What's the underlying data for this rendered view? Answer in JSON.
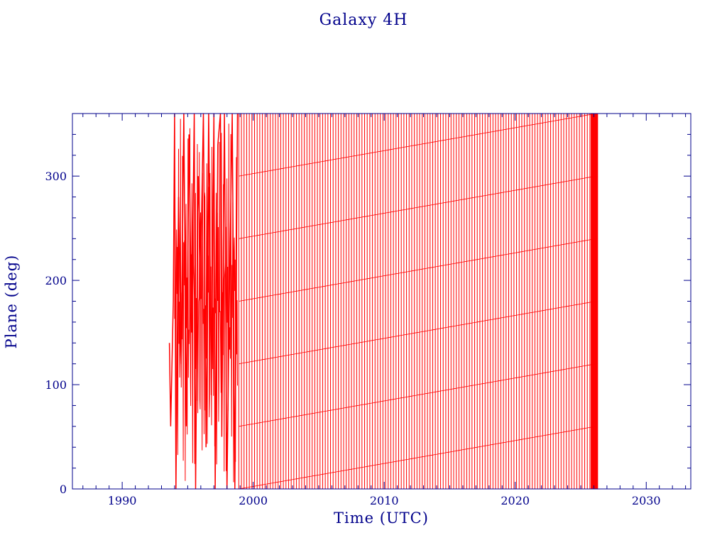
{
  "colors": {
    "axis": "#00008b",
    "text": "#00008b",
    "series": "#ff0000"
  },
  "chart_data": {
    "type": "line",
    "title": "Galaxy 4H",
    "xlabel": "Time (UTC)",
    "ylabel": "Plane (deg)",
    "xlim": [
      1986.2,
      2033.4
    ],
    "ylim": [
      0,
      360
    ],
    "x_ticks": [
      1990,
      2000,
      2010,
      2020,
      2030
    ],
    "x_tick_labels": [
      "1990",
      "2000",
      "2010",
      "2020",
      "2030"
    ],
    "y_ticks": [
      0,
      100,
      200,
      300
    ],
    "y_tick_labels": [
      "0",
      "100",
      "200",
      "300"
    ],
    "grid": false,
    "legend": "none",
    "series": [
      {
        "style": "wrapping sawtooth, plane angle wraps from 360 to 0",
        "regular_period_start": 1998.9,
        "regular_period_end": 2026.3,
        "cycles_per_year": 5,
        "offset_increase_deg_per_year": 2.2,
        "x": [
          1993.6,
          1993.7,
          1993.9,
          1994.0,
          1994.1,
          1994.3,
          1994.5,
          1994.7,
          1994.9,
          1995.1,
          1995.3,
          1995.5,
          1995.6,
          1995.8,
          1996.0,
          1996.2,
          1996.4,
          1996.6,
          1996.8,
          1997.0,
          1997.1,
          1997.3,
          1997.5,
          1997.6,
          1997.8,
          1998.0,
          1998.2,
          1998.4,
          1998.6,
          1998.8
        ],
        "y": [
          140,
          60,
          180,
          360,
          0,
          280,
          120,
          360,
          60,
          340,
          150,
          360,
          0,
          300,
          220,
          360,
          40,
          360,
          90,
          360,
          0,
          330,
          360,
          50,
          360,
          0,
          200,
          360,
          0,
          360
        ]
      }
    ]
  }
}
